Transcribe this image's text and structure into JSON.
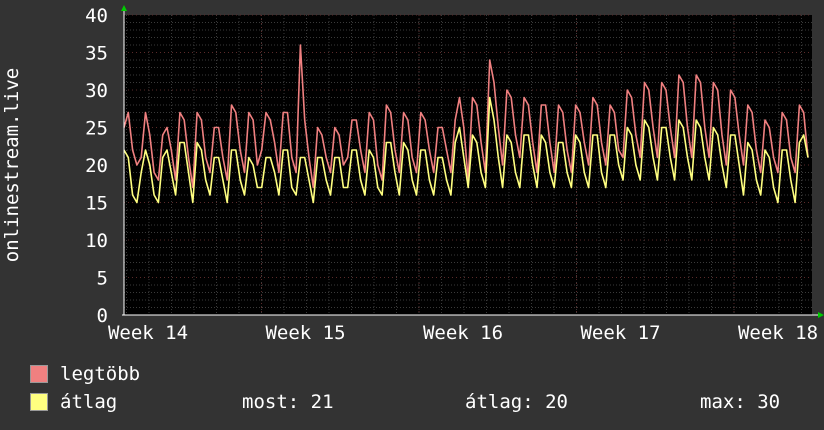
{
  "chart_data": {
    "type": "line",
    "ylabel": "onlinestream.live",
    "ylim": [
      0,
      40
    ],
    "yticks": [
      "0",
      "5",
      "10",
      "15",
      "20",
      "25",
      "30",
      "35",
      "40"
    ],
    "xticks": [
      "Week 14",
      "Week 15",
      "Week 16",
      "Week 17",
      "Week 18"
    ],
    "grid": true,
    "series": [
      {
        "name": "legtöbb",
        "color": "#f08080",
        "values": [
          25,
          27,
          22,
          20,
          21,
          27,
          24,
          19,
          18,
          24,
          25,
          22,
          18,
          27,
          26,
          21,
          17,
          27,
          26,
          21,
          19,
          25,
          25,
          21,
          18,
          28,
          27,
          22,
          19,
          27,
          26,
          20,
          22,
          27,
          26,
          23,
          19,
          27,
          27,
          21,
          19,
          36,
          26,
          21,
          17,
          25,
          24,
          21,
          19,
          25,
          24,
          20,
          21,
          26,
          26,
          22,
          19,
          27,
          26,
          20,
          18,
          28,
          27,
          22,
          19,
          27,
          26,
          21,
          19,
          27,
          26,
          22,
          19,
          25,
          25,
          22,
          19,
          26,
          29,
          25,
          18,
          29,
          28,
          23,
          19,
          34,
          31,
          25,
          20,
          30,
          29,
          24,
          21,
          29,
          28,
          23,
          19,
          28,
          28,
          23,
          19,
          28,
          27,
          22,
          19,
          28,
          27,
          23,
          20,
          29,
          28,
          23,
          20,
          28,
          27,
          22,
          21,
          30,
          29,
          24,
          21,
          31,
          30,
          25,
          21,
          31,
          30,
          25,
          21,
          32,
          31,
          25,
          21,
          32,
          31,
          25,
          21,
          31,
          30,
          24,
          20,
          30,
          29,
          24,
          20,
          28,
          27,
          22,
          19,
          26,
          25,
          21,
          19,
          27,
          26,
          21,
          19,
          28,
          27,
          21
        ]
      },
      {
        "name": "átlag",
        "color": "#ffff80",
        "values": [
          22,
          21,
          16,
          15,
          19,
          22,
          20,
          16,
          15,
          21,
          22,
          19,
          16,
          23,
          23,
          19,
          15,
          23,
          22,
          18,
          16,
          21,
          21,
          18,
          15,
          22,
          22,
          18,
          16,
          21,
          20,
          17,
          17,
          21,
          21,
          19,
          16,
          22,
          22,
          17,
          16,
          21,
          21,
          18,
          15,
          21,
          21,
          18,
          16,
          21,
          21,
          17,
          17,
          22,
          22,
          18,
          16,
          22,
          21,
          17,
          16,
          23,
          23,
          19,
          16,
          23,
          22,
          18,
          16,
          22,
          22,
          18,
          16,
          21,
          21,
          18,
          16,
          23,
          25,
          21,
          17,
          24,
          23,
          19,
          17,
          29,
          26,
          21,
          17,
          24,
          23,
          19,
          17,
          24,
          24,
          20,
          17,
          24,
          23,
          19,
          17,
          23,
          23,
          19,
          17,
          24,
          23,
          19,
          17,
          24,
          24,
          19,
          17,
          24,
          24,
          20,
          18,
          25,
          24,
          20,
          18,
          26,
          25,
          21,
          18,
          25,
          25,
          21,
          18,
          26,
          25,
          21,
          18,
          26,
          25,
          21,
          18,
          25,
          24,
          20,
          17,
          24,
          24,
          20,
          16,
          23,
          22,
          18,
          16,
          22,
          21,
          17,
          15,
          22,
          22,
          18,
          15,
          23,
          24,
          21
        ]
      }
    ]
  },
  "stats": {
    "now_label": "most:",
    "now_value": "21",
    "avg_label": "átlag:",
    "avg_value": "20",
    "max_label": "max:",
    "max_value": "30"
  }
}
